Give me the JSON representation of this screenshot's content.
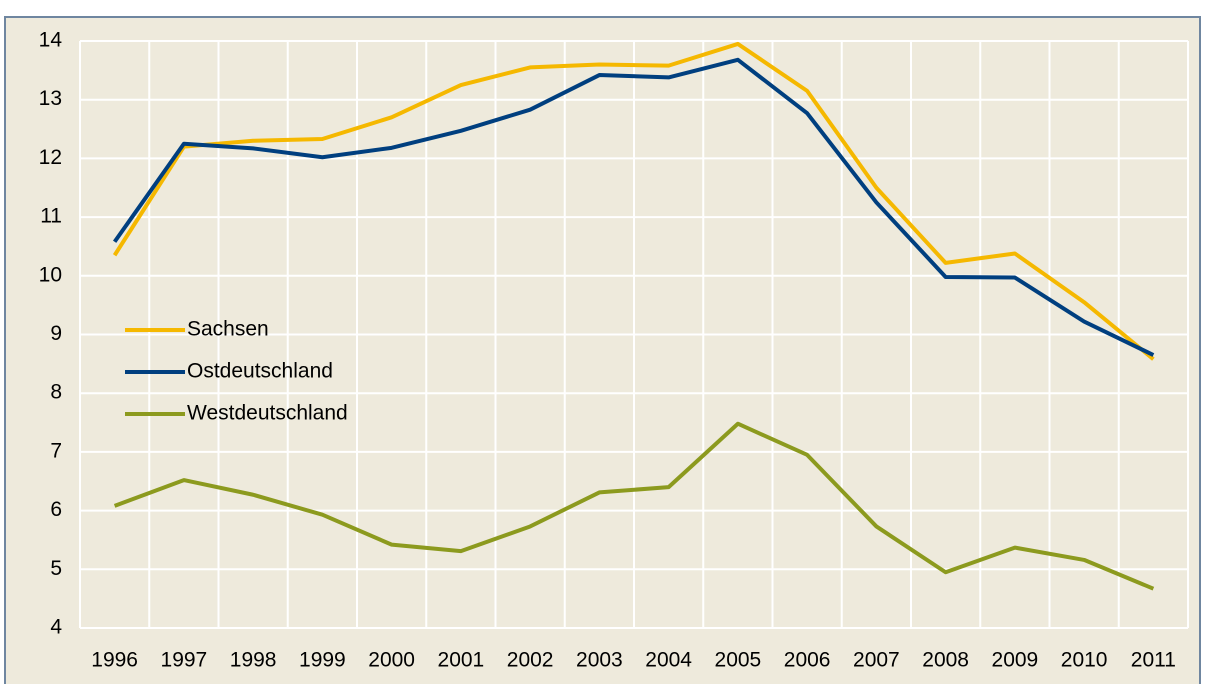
{
  "chart_data": {
    "type": "line",
    "categories": [
      "1996",
      "1997",
      "1998",
      "1999",
      "2000",
      "2001",
      "2002",
      "2003",
      "2004",
      "2005",
      "2006",
      "2007",
      "2008",
      "2009",
      "2010",
      "2011"
    ],
    "series": [
      {
        "name": "Sachsen",
        "color": "#f5b800",
        "values": [
          10.35,
          12.2,
          12.3,
          12.33,
          12.7,
          13.25,
          13.55,
          13.6,
          13.58,
          13.95,
          13.15,
          11.5,
          10.22,
          10.38,
          9.55,
          8.58
        ]
      },
      {
        "name": "Ostdeutschland",
        "color": "#003f7f",
        "values": [
          10.58,
          12.25,
          12.17,
          12.02,
          12.18,
          12.47,
          12.83,
          13.42,
          13.38,
          13.68,
          12.77,
          11.25,
          9.98,
          9.97,
          9.22,
          8.65
        ]
      },
      {
        "name": "Westdeutschland",
        "color": "#8c9a1e",
        "values": [
          6.08,
          6.52,
          6.27,
          5.93,
          5.42,
          5.31,
          5.73,
          6.31,
          6.4,
          7.48,
          6.95,
          5.73,
          4.95,
          5.37,
          5.16,
          4.67
        ]
      }
    ],
    "ylim": [
      4,
      14
    ],
    "yticks": [
      4,
      5,
      6,
      7,
      8,
      9,
      10,
      11,
      12,
      13,
      14
    ],
    "grid": true,
    "legend": "center-left"
  }
}
